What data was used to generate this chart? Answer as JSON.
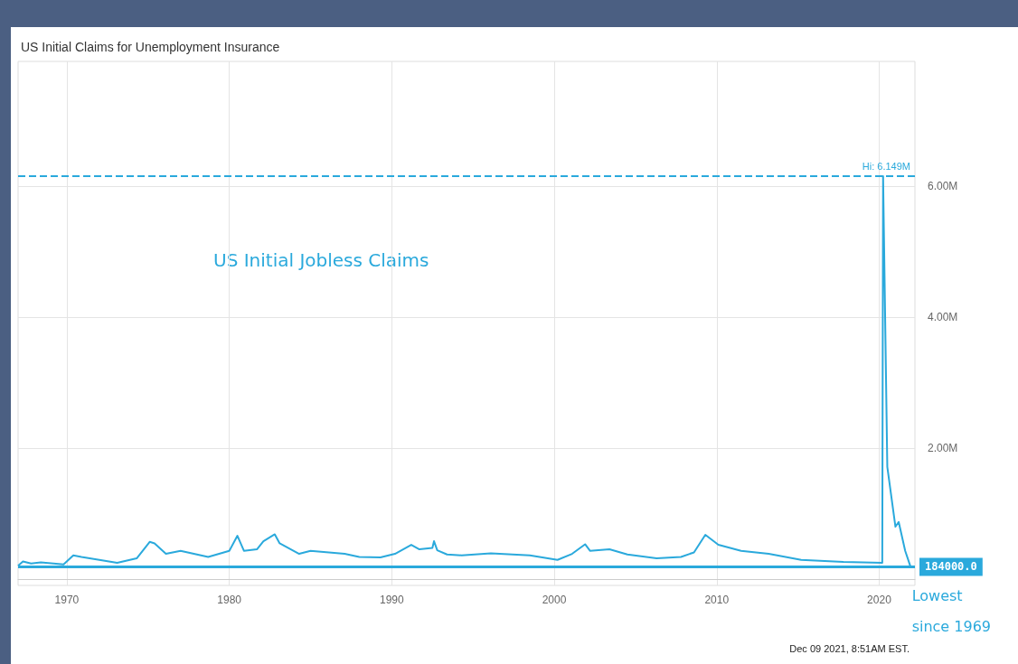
{
  "chart_data": {
    "type": "line",
    "title": "US Initial Claims for Unemployment Insurance",
    "x": [
      1967.0,
      1967.3,
      1967.8,
      1968.4,
      1969.8,
      1970.4,
      1970.9,
      1972.0,
      1973.1,
      1974.3,
      1975.1,
      1975.4,
      1976.1,
      1977.0,
      1978.7,
      1980.0,
      1980.5,
      1980.9,
      1981.7,
      1982.1,
      1982.8,
      1983.1,
      1984.3,
      1985.0,
      1987.1,
      1988.0,
      1989.3,
      1990.2,
      1991.2,
      1991.7,
      1992.5,
      1992.6,
      1992.8,
      1993.4,
      1994.3,
      1996.1,
      1998.5,
      2000.2,
      2001.1,
      2001.9,
      2002.2,
      2003.4,
      2004.5,
      2006.3,
      2007.8,
      2008.6,
      2009.3,
      2010.1,
      2011.5,
      2013.2,
      2015.2,
      2017.8,
      2020.19,
      2020.24,
      2020.5,
      2021.0,
      2021.2,
      2021.6,
      2021.85,
      2021.93
    ],
    "series": [
      {
        "color": "#2aa9dc",
        "values": [
          200000,
          266000,
          234000,
          252000,
          220000,
          359000,
          335000,
          290000,
          244000,
          313000,
          565000,
          542000,
          382000,
          428000,
          335000,
          428000,
          658000,
          428000,
          451000,
          575000,
          680000,
          542000,
          382000,
          428000,
          382000,
          335000,
          327000,
          382000,
          520000,
          451000,
          473000,
          575000,
          437000,
          372000,
          359000,
          390000,
          359000,
          290000,
          382000,
          528000,
          428000,
          451000,
          372000,
          313000,
          335000,
          404000,
          672000,
          520000,
          428000,
          382000,
          290000,
          258000,
          244000,
          6149000,
          1710000,
          796000,
          869000,
          428000,
          244000,
          184000
        ]
      }
    ],
    "xlim": [
      1967,
      2022.2
    ],
    "xticks": [
      1970,
      1980,
      1990,
      2000,
      2010,
      2020
    ],
    "ylim": [
      -100000,
      7900000
    ],
    "yticks": [
      {
        "value": 2000000,
        "label": "2.00M"
      },
      {
        "value": 4000000,
        "label": "4.00M"
      },
      {
        "value": 6000000,
        "label": "6.00M"
      }
    ],
    "grid": true,
    "marker": "none",
    "line_style": "solid",
    "ref_lines": [
      {
        "axis": "y",
        "value": 6149000,
        "label": "Hi: 6.149M",
        "color": "#2aa9dc",
        "line_style": "dashed"
      },
      {
        "axis": "y",
        "value": 184000,
        "label": "184000.0",
        "color": "#2aa9dc",
        "line_style": "solid"
      }
    ],
    "annotations": [
      "US Initial Jobless Claims",
      "Lowest since 1969",
      "Dec 09 2021, 8:51AM EST."
    ]
  }
}
